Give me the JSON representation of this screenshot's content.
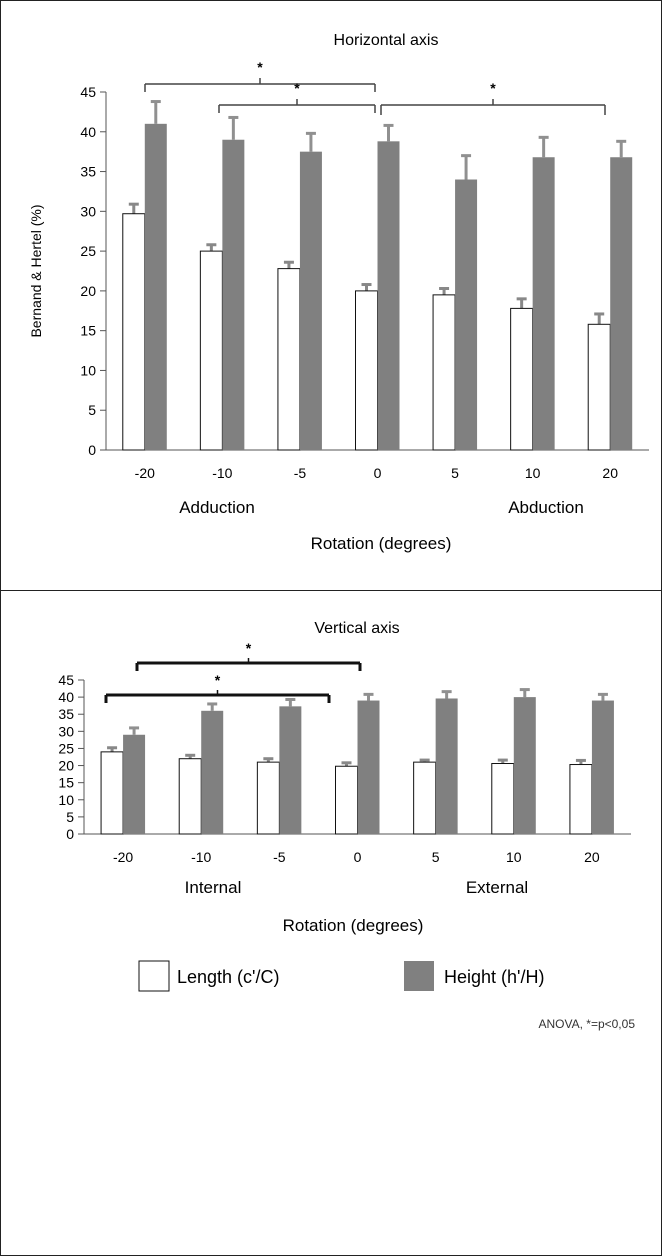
{
  "chart_data": [
    {
      "type": "bar",
      "title": "Horizontal axis",
      "ylabel": "Bernand & Hertel (%)",
      "xlabel": "Rotation (degrees)",
      "categories": [
        "-20",
        "-10",
        "-5",
        "0",
        "5",
        "10",
        "20"
      ],
      "ylim": [
        0,
        45
      ],
      "yticks": [
        0,
        5,
        10,
        15,
        20,
        25,
        30,
        35,
        40,
        45
      ],
      "group_labels": [
        "Adduction",
        "Abduction"
      ],
      "series": [
        {
          "values": [
            29.7,
            25.0,
            22.8,
            20.0,
            19.5,
            17.8,
            15.8
          ],
          "errors": [
            1.2,
            0.8,
            0.8,
            0.8,
            0.8,
            1.2,
            1.3
          ],
          "color": "#ffffff"
        },
        {
          "values": [
            41.0,
            39.0,
            37.5,
            38.8,
            34.0,
            36.8,
            36.8
          ],
          "errors": [
            2.8,
            2.8,
            2.3,
            2.0,
            3.0,
            2.5,
            2.0
          ],
          "color": "#808080"
        }
      ],
      "significance": [
        {
          "from": 0,
          "to": 3,
          "label": "*"
        },
        {
          "from": 1,
          "to": 3,
          "label": "*"
        },
        {
          "from": 3,
          "to": 6,
          "label": "*"
        }
      ]
    },
    {
      "type": "bar",
      "title": "Vertical axis",
      "ylabel": "",
      "xlabel": "Rotation (degrees)",
      "categories": [
        "-20",
        "-10",
        "-5",
        "0",
        "5",
        "10",
        "20"
      ],
      "ylim": [
        0,
        45
      ],
      "yticks": [
        0,
        5,
        10,
        15,
        20,
        25,
        30,
        35,
        40,
        45
      ],
      "group_labels": [
        "Internal",
        "External"
      ],
      "series": [
        {
          "name": "Length (c'/C)",
          "values": [
            24.0,
            22.0,
            21.0,
            19.8,
            21.0,
            20.6,
            20.3
          ],
          "errors": [
            1.2,
            1.0,
            1.0,
            1.0,
            0.6,
            1.0,
            1.2
          ],
          "color": "#ffffff"
        },
        {
          "name": "Height (h'/H)",
          "values": [
            29.0,
            36.0,
            37.3,
            39.0,
            39.6,
            40.0,
            39.0
          ],
          "errors": [
            2.0,
            2.0,
            2.0,
            1.8,
            2.0,
            2.2,
            1.8
          ],
          "color": "#808080"
        }
      ],
      "significance": [
        {
          "from": 0,
          "to": 3,
          "label": "*"
        },
        {
          "from": 1,
          "to": 4,
          "label": "*"
        }
      ]
    }
  ],
  "legend": {
    "items": [
      {
        "label": "Length (c'/C)",
        "color": "#ffffff"
      },
      {
        "label": "Height (h'/H)",
        "color": "#808080"
      }
    ]
  },
  "footnote": "ANOVA, *=p<0,05"
}
